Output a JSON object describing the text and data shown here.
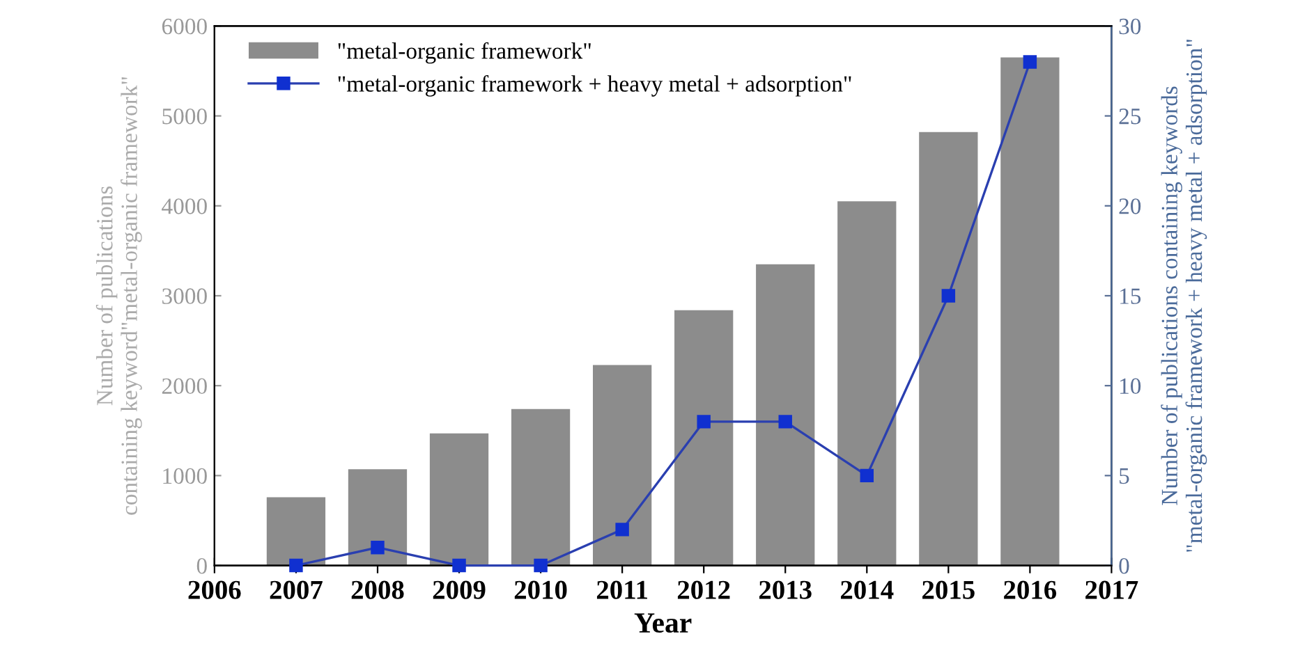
{
  "chart_data": {
    "type": "bar",
    "xlabel": "Year",
    "ylabel": "Number of publications\ncontaining keyword\"metal-organic framework\"",
    "y2label": "Number of publications containing keywords\n\"metal-organic framework + heavy metal + adsorption\"",
    "x": [
      2007,
      2008,
      2009,
      2010,
      2011,
      2012,
      2013,
      2014,
      2015,
      2016
    ],
    "series": [
      {
        "name": "\"metal-organic framework\"",
        "color": "#8c8c8c",
        "values": [
          760,
          1070,
          1470,
          1740,
          2230,
          2840,
          3350,
          4050,
          4820,
          5650
        ]
      },
      {
        "name": "\"metal-organic framework + heavy metal + adsorption\"",
        "type": "line",
        "axis": "y2",
        "color": "#2a3fb0",
        "marker": "square",
        "values": [
          0,
          1,
          0,
          0,
          2,
          8,
          8,
          5,
          15,
          28
        ]
      }
    ],
    "xlim": [
      2006,
      2017
    ],
    "xticks": [
      2006,
      2007,
      2008,
      2009,
      2010,
      2011,
      2012,
      2013,
      2014,
      2015,
      2016,
      2017
    ],
    "ylim": [
      0,
      6000
    ],
    "yticks": [
      0,
      1000,
      2000,
      3000,
      4000,
      5000,
      6000
    ],
    "y2lim": [
      0,
      30
    ],
    "y2ticks": [
      0,
      5,
      10,
      15,
      20,
      25,
      30
    ],
    "grid": false,
    "legend": "top left"
  }
}
